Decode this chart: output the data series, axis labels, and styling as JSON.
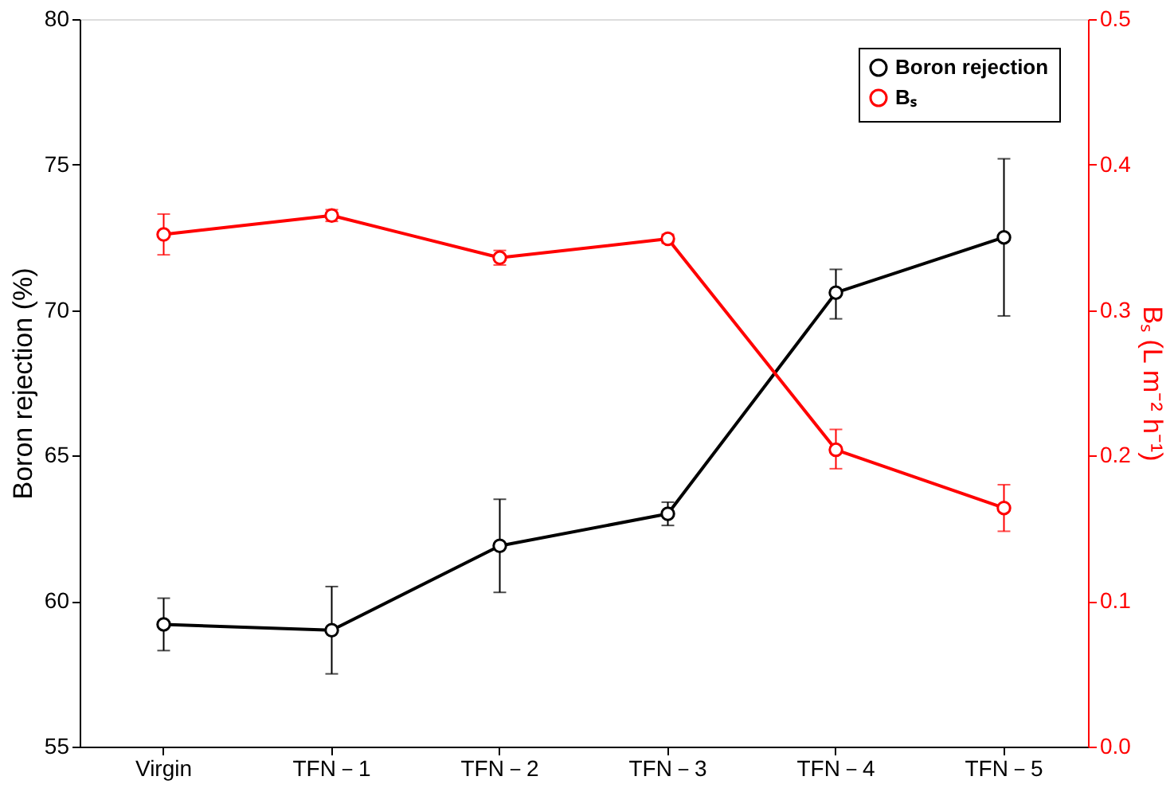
{
  "chart_data": {
    "type": "line",
    "categories": [
      "Virgin",
      "TFN－1",
      "TFN－2",
      "TFN－3",
      "TFN－4",
      "TFN－5"
    ],
    "ylabel": "Boron rejection (%)",
    "y2label": "Bₛ (L m⁻² h⁻¹)",
    "ylim": [
      55,
      80
    ],
    "yticks": [
      55,
      60,
      65,
      70,
      75,
      80
    ],
    "y2lim": [
      0,
      0.5
    ],
    "y2ticks": [
      {
        "value": 0,
        "label": "0.0"
      },
      0.1,
      0.2,
      0.3,
      0.4,
      0.5
    ],
    "marker": "circle",
    "line_style": "solid",
    "legend": "top right",
    "grid": false,
    "series": [
      {
        "name": "Boron rejection",
        "color": "#000000",
        "values": [
          59.2,
          59.0,
          61.9,
          63.0,
          70.6,
          72.5
        ],
        "errors": [
          [
            58.3,
            60.1
          ],
          [
            57.5,
            60.5
          ],
          [
            60.3,
            63.5
          ],
          [
            62.6,
            63.4
          ],
          [
            69.7,
            71.4
          ],
          [
            69.8,
            75.2
          ]
        ]
      },
      {
        "name": "Bₛ",
        "color": "#ff0000",
        "axis": "y2",
        "values": [
          0.352,
          0.365,
          0.336,
          0.349,
          0.204,
          0.164
        ],
        "errors": [
          [
            0.338,
            0.366
          ],
          [
            0.361,
            0.369
          ],
          [
            0.331,
            0.341
          ],
          [
            0.346,
            0.352
          ],
          [
            0.191,
            0.218
          ],
          [
            0.148,
            0.18
          ]
        ]
      }
    ]
  }
}
